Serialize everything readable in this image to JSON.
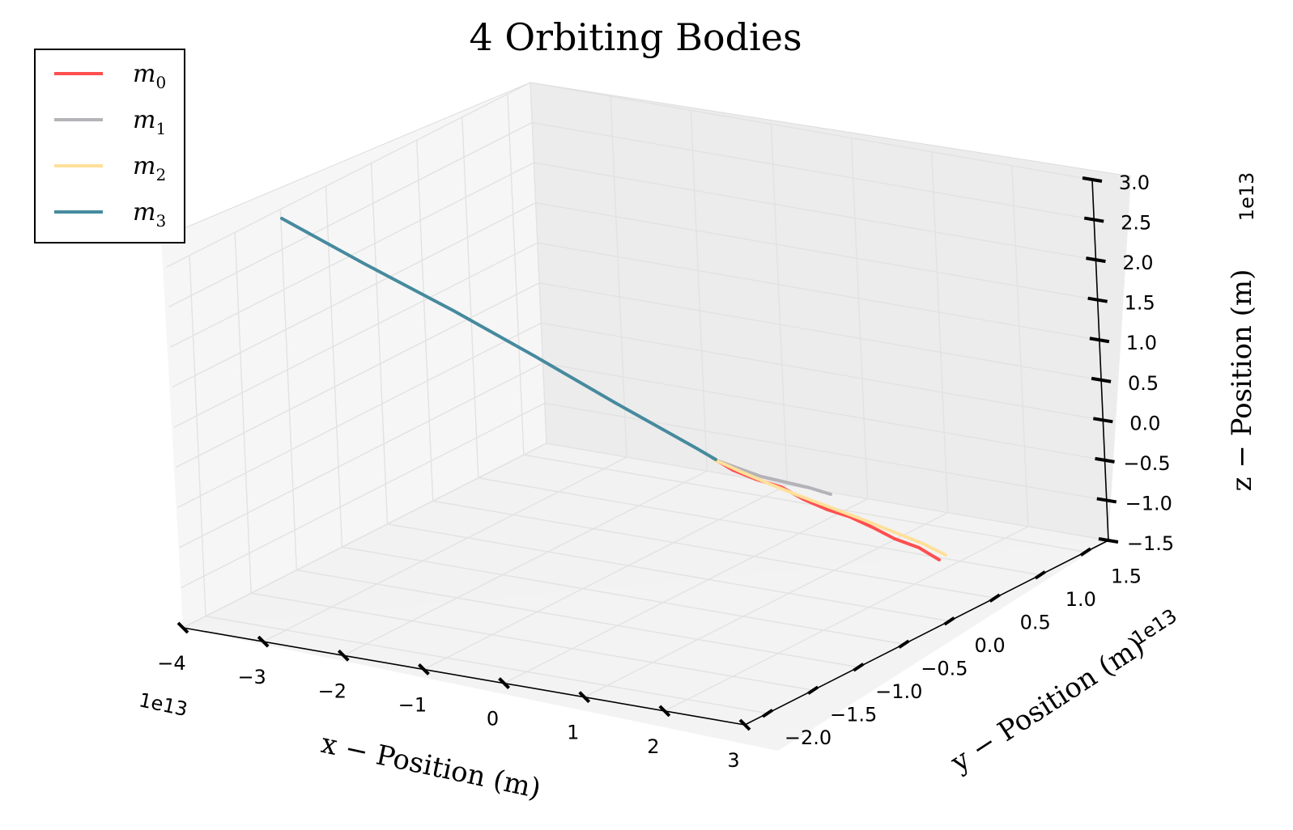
{
  "chart_data": {
    "type": "line",
    "projection": "3d",
    "title": "4 Orbiting Bodies",
    "xlabel": "x − Position (m)",
    "ylabel": "y − Position (m)",
    "zlabel": "z − Position (m)",
    "x_offset_label": "1e13",
    "y_offset_label": "1e13",
    "z_offset_label": "1e13",
    "xlim": [
      -4,
      3
    ],
    "ylim": [
      -2.25,
      1.75
    ],
    "zlim": [
      -1.5,
      3.0
    ],
    "x_ticks": [
      "−4",
      "−3",
      "−2",
      "−1",
      "0",
      "1",
      "2",
      "3"
    ],
    "y_ticks": [
      "−2.0",
      "−1.5",
      "−1.0",
      "−0.5",
      "0.0",
      "0.5",
      "1.0",
      "1.5"
    ],
    "z_ticks": [
      "−1.5",
      "−1.0",
      "−0.5",
      "0.0",
      "0.5",
      "1.0",
      "1.5",
      "2.0",
      "2.5",
      "3.0"
    ],
    "grid": true,
    "legend_position": "top-left",
    "series": [
      {
        "name": "m",
        "sub": "0",
        "color": "#ff4f4f"
      },
      {
        "name": "m",
        "sub": "1",
        "color": "#b3b3b8"
      },
      {
        "name": "m",
        "sub": "2",
        "color": "#ffe09a"
      },
      {
        "name": "m",
        "sub": "3",
        "color": "#468a9e"
      }
    ]
  }
}
